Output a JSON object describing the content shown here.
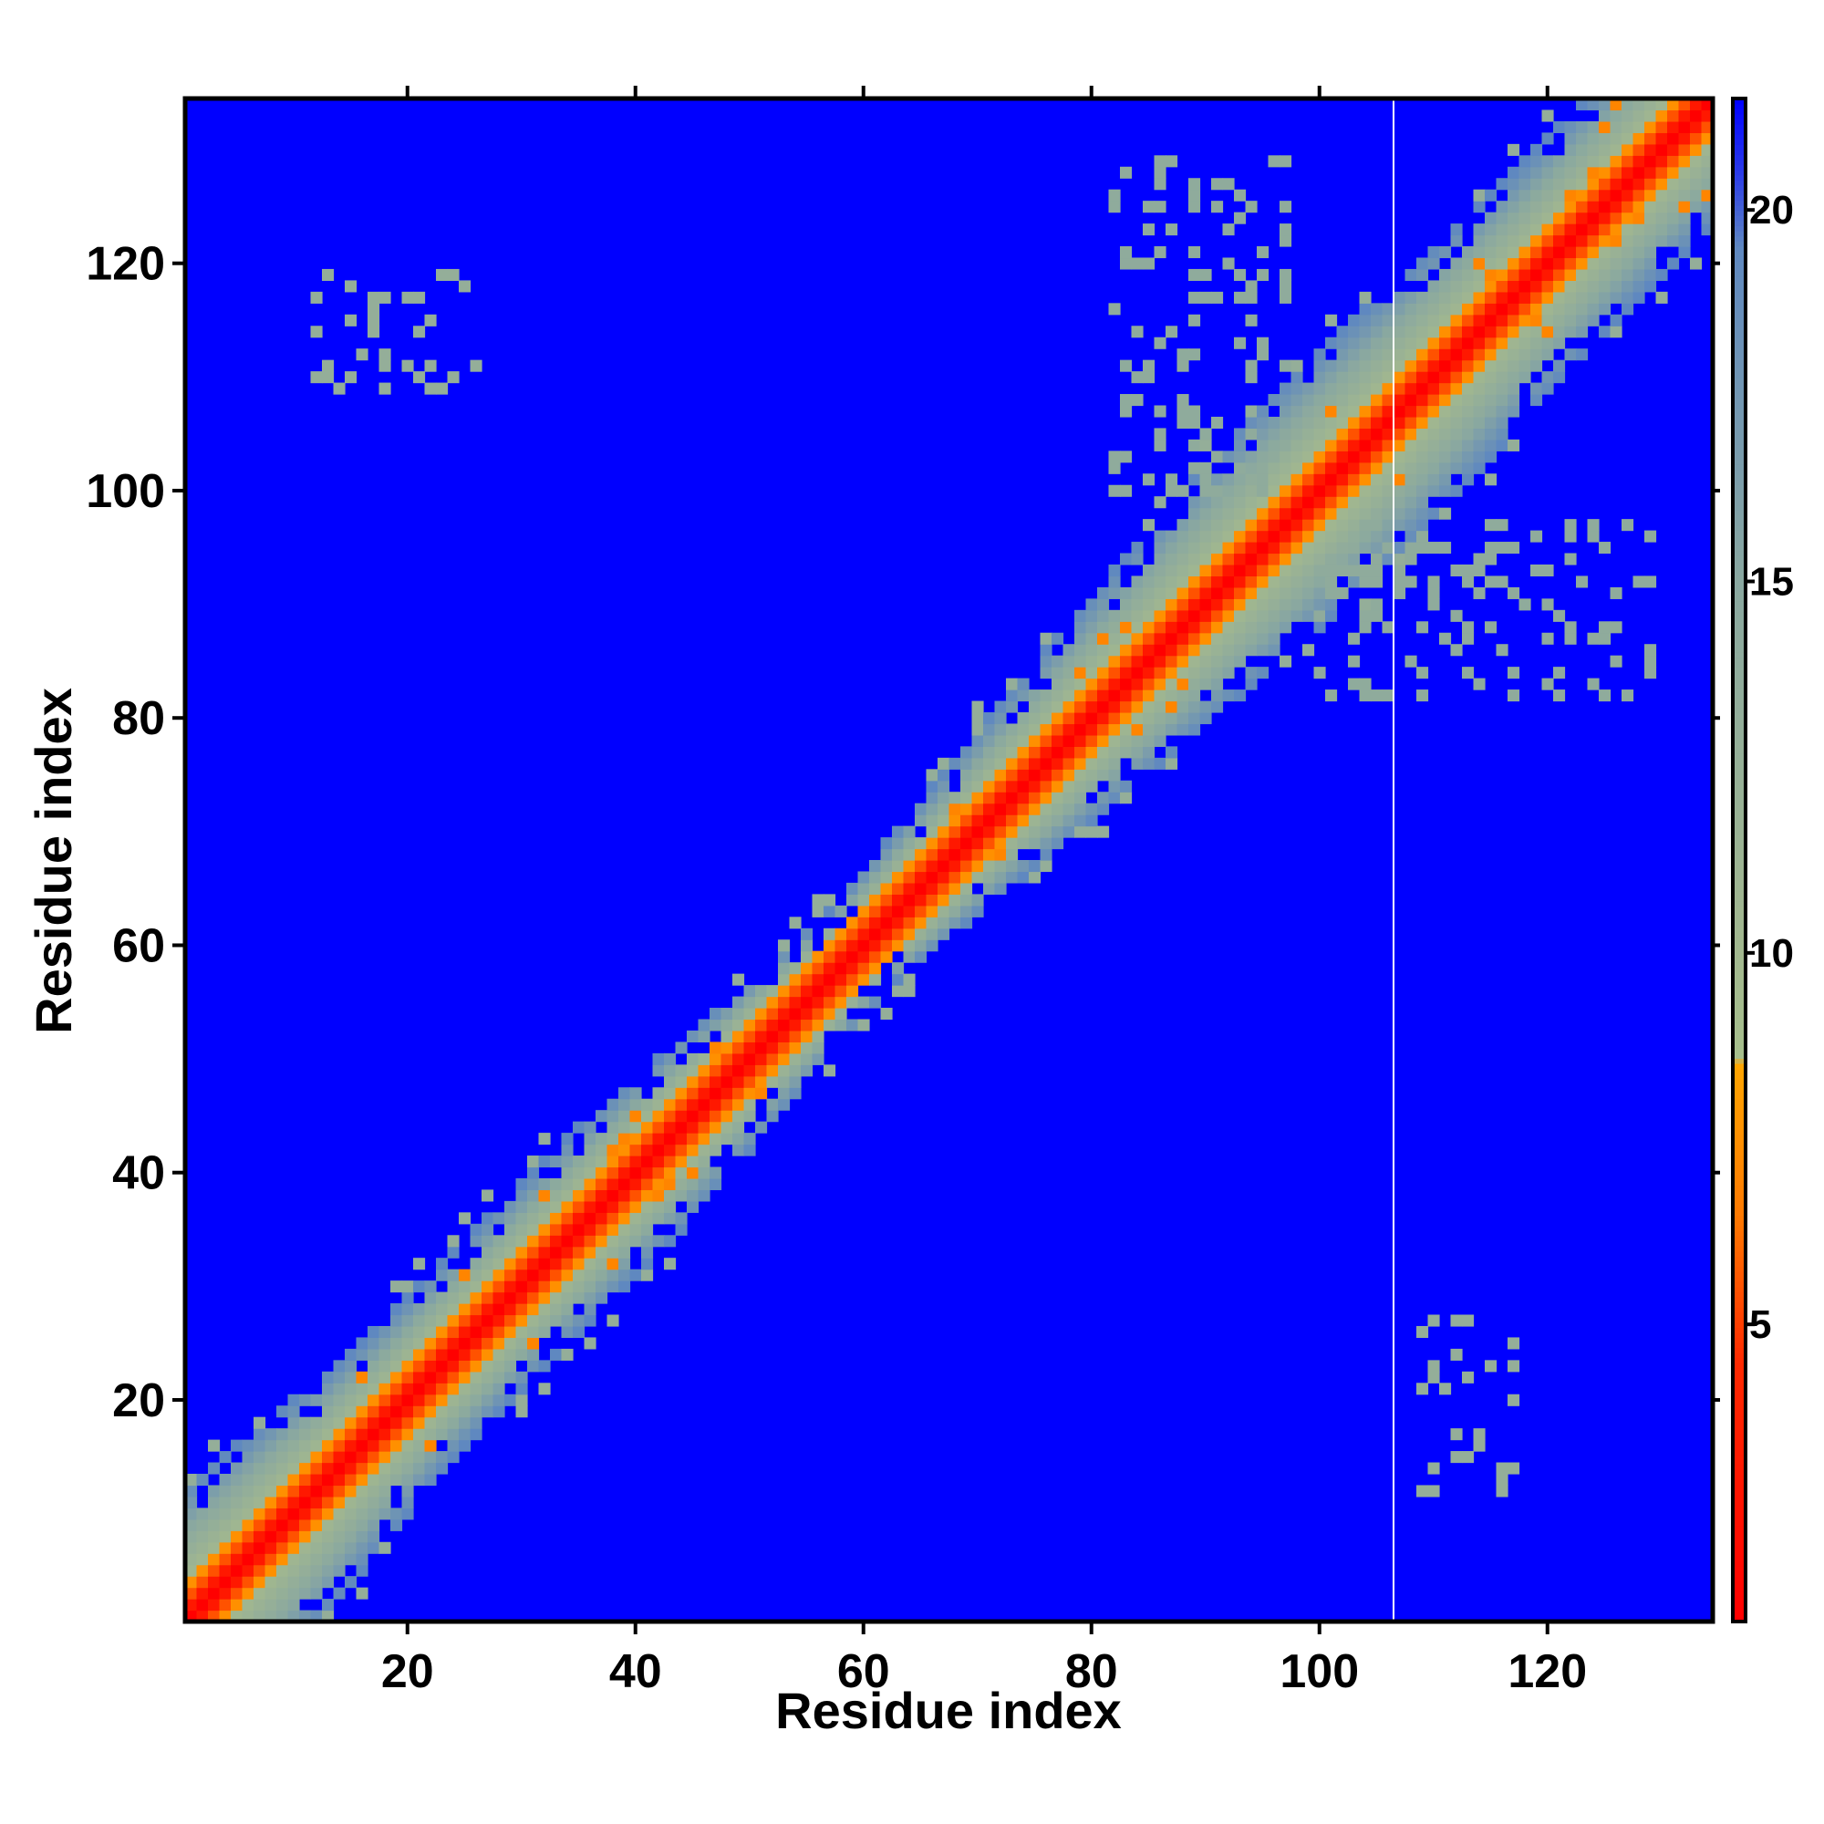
{
  "chart_data": {
    "type": "heatmap",
    "subtype": "residue-residue distance map",
    "title": "",
    "xlabel": "Residue index",
    "ylabel": "Residue index",
    "xlim": [
      1,
      134
    ],
    "ylim": [
      1,
      134
    ],
    "x_ticks": [
      20,
      40,
      60,
      80,
      100,
      120
    ],
    "y_ticks": [
      20,
      40,
      60,
      80,
      100,
      120
    ],
    "colorbar": {
      "ticks": [
        5,
        10,
        15,
        20
      ],
      "range": [
        1,
        21.5
      ],
      "stops": [
        {
          "value": 1.0,
          "color": "#ff0000"
        },
        {
          "value": 4.5,
          "color": "#ff2a00"
        },
        {
          "value": 6.5,
          "color": "#ff7a00"
        },
        {
          "value": 8.5,
          "color": "#ffa500"
        },
        {
          "value": 8.6,
          "color": "#a7bf8c"
        },
        {
          "value": 10.5,
          "color": "#a0b690"
        },
        {
          "value": 15.0,
          "color": "#8aa8a0"
        },
        {
          "value": 19.5,
          "color": "#5f88c0"
        },
        {
          "value": 20.5,
          "color": "#2b3ce8"
        },
        {
          "value": 21.5,
          "color": "#0000ff"
        }
      ]
    },
    "background_value": 21,
    "background_color": "#0000ff",
    "diagonal_band": {
      "description": "distance grows with sequence separation |i-j| near the diagonal",
      "profile": [
        {
          "separation": 0,
          "value": 1
        },
        {
          "separation": 1,
          "value": 3
        },
        {
          "separation": 2,
          "value": 5.5
        },
        {
          "separation": 3,
          "value": 7.5
        },
        {
          "separation": 4,
          "value": 10
        },
        {
          "separation": 6,
          "value": 12
        },
        {
          "separation": 8,
          "value": 15
        },
        {
          "separation": 10,
          "value": 18.5
        }
      ],
      "half_width_by_residue": [
        {
          "residue": 1,
          "width": 13
        },
        {
          "residue": 20,
          "width": 9
        },
        {
          "residue": 40,
          "width": 9
        },
        {
          "residue": 60,
          "width": 6
        },
        {
          "residue": 80,
          "width": 10
        },
        {
          "residue": 100,
          "width": 13
        },
        {
          "residue": 120,
          "width": 11
        },
        {
          "residue": 134,
          "width": 11
        }
      ]
    },
    "contact_clusters": [
      {
        "x": [
          12,
          27
        ],
        "y": [
          109,
          119
        ],
        "value": 13
      },
      {
        "x": [
          109,
          117
        ],
        "y": [
          12,
          27
        ],
        "value": 13
      },
      {
        "x": [
          82,
          97
        ],
        "y": [
          100,
          129
        ],
        "value": 14
      },
      {
        "x": [
          100,
          129
        ],
        "y": [
          82,
          97
        ],
        "value": 14
      }
    ],
    "white_line_x": 106.5
  }
}
